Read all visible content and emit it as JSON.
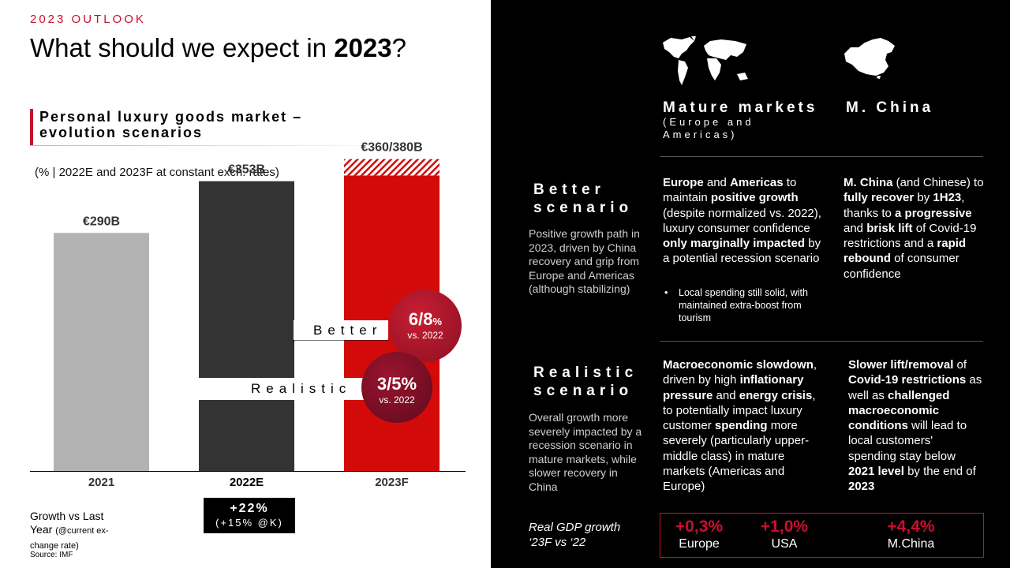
{
  "header": {
    "eyebrow": "2023 OUTLOOK",
    "title_pre": "What should we expect in ",
    "title_year": "2023",
    "title_post": "?"
  },
  "subhead": {
    "line1": "Personal luxury goods market –",
    "line2": "evolution scenarios"
  },
  "units_note": "(% | 2022E and 2023F at constant exch. rates)",
  "colors": {
    "accent": "#c8102e",
    "bar_2021": "#b3b3b3",
    "bar_2022": "#333333",
    "bar_2023": "#d30a0a"
  },
  "chart_data": {
    "type": "bar",
    "categories": [
      "2021",
      "2022E",
      "2023F"
    ],
    "values": [
      290,
      353,
      360
    ],
    "range_upper_2023": 380,
    "value_labels": [
      "€290B",
      "€353B",
      "€360/380B"
    ],
    "unit": "€B",
    "ylim": [
      0,
      420
    ],
    "scenarios": [
      {
        "name": "Better",
        "growth": "6/8",
        "pct": "%",
        "vs": "vs. 2022"
      },
      {
        "name": "Realistic",
        "growth": "3/5%",
        "pct": "",
        "vs": "vs. 2022"
      }
    ]
  },
  "growth": {
    "label_line1": "Growth vs Last",
    "label_line2": "Year",
    "label_small": "(@current ex-",
    "label_small2": "change rate)",
    "value": "+22%",
    "sub": "(+15% @K)"
  },
  "source": "Source: IMF",
  "columns": {
    "mature": {
      "title": "Mature markets",
      "sub1": "(Europe and",
      "sub2": "Americas)"
    },
    "china": {
      "title": "M. China"
    }
  },
  "better": {
    "head1": "Better",
    "head2": "scenario",
    "desc": "Positive growth path in 2023, driven by China recovery and grip from Europe and Americas (although stabilizing)",
    "mature": {
      "p1": "Europe",
      "p2": " and ",
      "p3": "Americas",
      "p4": " to maintain ",
      "p5": "positive growth",
      "p6": " (despite normalized vs. 2022), luxury consumer confidence ",
      "p7": "only marginally impacted",
      "p8": " by a potential recession scenario"
    },
    "bullet": "Local spending still solid, with maintained extra-boost from tourism",
    "china": {
      "p1": "M. China",
      "p2": " (and Chinese) to ",
      "p3": "fully recover",
      "p4": " by ",
      "p5": "1H23",
      "p6": ", thanks to ",
      "p7": "a progressive",
      "p8": " and ",
      "p9": "brisk lift",
      "p10": " of Covid-19 restrictions and a ",
      "p11": "rapid rebound",
      "p12": " of consumer confidence"
    }
  },
  "realistic": {
    "head1": "Realistic",
    "head2": "scenario",
    "desc": "Overall growth more severely impacted by a recession scenario in mature markets, while slower recovery in China",
    "mature": {
      "p1": "Macroeconomic slowdown",
      "p2": ", driven by high ",
      "p3": "inflationary pressure",
      "p4": " and ",
      "p5": "energy crisis",
      "p6": ", to potentially impact luxury customer ",
      "p7": "spending",
      "p8": " more severely (particularly upper-middle class) in mature markets (Americas and Europe)"
    },
    "china": {
      "p1": "Slower lift/removal",
      "p2": " of ",
      "p3": "Covid-19 restrictions",
      "p4": " as well as ",
      "p5": "challenged macroeconomic conditions",
      "p6": " will lead to local customers' spending stay below ",
      "p7": "2021 level",
      "p8": " by the end of ",
      "p9": "2023"
    }
  },
  "gdp": {
    "label1": "Real GDP growth",
    "label2": "‘23F vs ‘22",
    "items": [
      {
        "value": "+0,3%",
        "region": "Europe"
      },
      {
        "value": "+1,0%",
        "region": "USA"
      },
      {
        "value": "+4,4%",
        "region": "M.China"
      }
    ]
  }
}
